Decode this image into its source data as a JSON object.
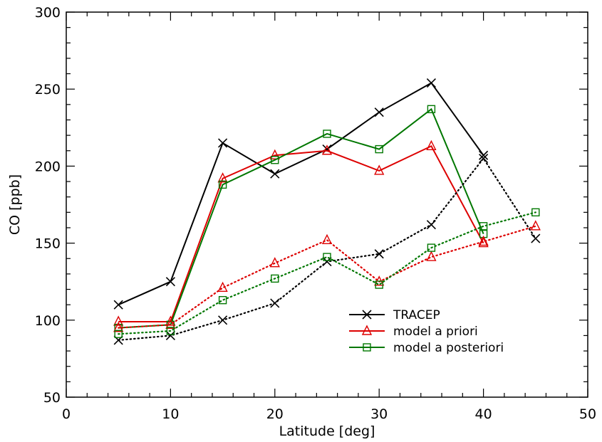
{
  "chart_data": {
    "type": "line",
    "xlabel": "Latitude [deg]",
    "ylabel": "CO [ppb]",
    "xlim": [
      0,
      50
    ],
    "ylim": [
      50,
      300
    ],
    "xticks": [
      0,
      10,
      20,
      30,
      40,
      50
    ],
    "yticks": [
      50,
      100,
      150,
      200,
      250,
      300
    ],
    "grid": false,
    "legend_position": "lower-right",
    "series": [
      {
        "name": "TRACEP",
        "group": "solid",
        "line_style": "solid",
        "marker": "x",
        "color": "#000000",
        "x": [
          5,
          10,
          15,
          20,
          25,
          30,
          35,
          40
        ],
        "y": [
          110,
          125,
          215,
          195,
          211,
          235,
          254,
          207
        ]
      },
      {
        "name": "model a priori",
        "group": "solid",
        "line_style": "solid",
        "marker": "triangle",
        "color": "#dd0000",
        "x": [
          5,
          10,
          15,
          20,
          25,
          30,
          35,
          40
        ],
        "y": [
          99,
          99,
          192,
          207,
          210,
          197,
          213,
          150
        ]
      },
      {
        "name": "model a posteriori",
        "group": "solid",
        "line_style": "solid",
        "marker": "square",
        "color": "#007700",
        "x": [
          5,
          10,
          15,
          20,
          25,
          30,
          35,
          40
        ],
        "y": [
          95,
          97,
          188,
          204,
          221,
          211,
          237,
          156
        ]
      },
      {
        "group": "dotted",
        "line_style": "dotted",
        "marker": "x",
        "color": "#000000",
        "x": [
          5,
          10,
          15,
          20,
          25,
          30,
          35,
          40,
          45
        ],
        "y": [
          87,
          90,
          100,
          111,
          138,
          143,
          162,
          205,
          153
        ]
      },
      {
        "group": "dotted",
        "line_style": "dotted",
        "marker": "triangle",
        "color": "#dd0000",
        "x": [
          5,
          10,
          15,
          20,
          25,
          30,
          35,
          40,
          45
        ],
        "y": [
          95,
          97,
          121,
          137,
          152,
          125,
          141,
          151,
          161
        ]
      },
      {
        "group": "dotted",
        "line_style": "dotted",
        "marker": "square",
        "color": "#007700",
        "x": [
          5,
          10,
          15,
          20,
          25,
          30,
          35,
          40,
          45
        ],
        "y": [
          91,
          93,
          113,
          127,
          141,
          123,
          147,
          161,
          170
        ]
      }
    ]
  }
}
